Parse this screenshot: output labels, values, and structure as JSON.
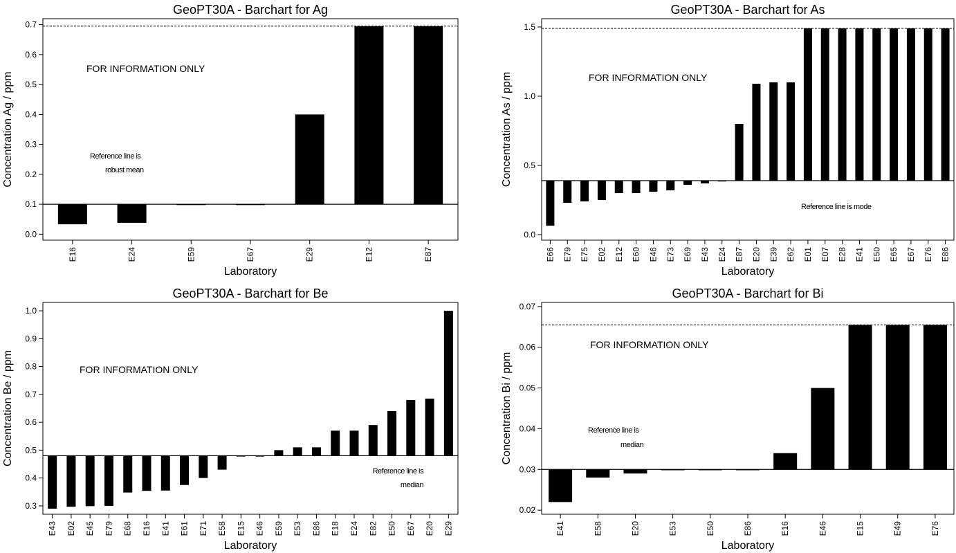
{
  "chart_data": [
    {
      "type": "bar",
      "title": "GeoPT30A - Barchart for Ag",
      "xlabel": "Laboratory",
      "ylabel": "Concentration Ag / ppm",
      "ylim": [
        -0.02,
        0.72
      ],
      "yticks": [
        0.0,
        0.1,
        0.2,
        0.3,
        0.4,
        0.5,
        0.6,
        0.7
      ],
      "ytick_labels": [
        "0.0",
        "0.1",
        "0.2",
        "0.3",
        "0.4",
        "0.5",
        "0.6",
        "0.7"
      ],
      "reference_value": 0.1,
      "cap_value": 0.695,
      "categories": [
        "E16",
        "E24",
        "E59",
        "E67",
        "E29",
        "E12",
        "E87"
      ],
      "values": [
        0.033,
        0.038,
        0.1,
        0.1,
        0.4,
        0.695,
        0.695
      ],
      "annotations": {
        "info": "FOR INFORMATION ONLY",
        "ref_line_1": "Reference line is",
        "ref_line_2": "robust mean"
      }
    },
    {
      "type": "bar",
      "title": "GeoPT30A - Barchart for As",
      "xlabel": "Laboratory",
      "ylabel": "Concentration As / ppm",
      "ylim": [
        -0.04,
        1.56
      ],
      "yticks": [
        0.0,
        0.5,
        1.0,
        1.5
      ],
      "ytick_labels": [
        "0.0",
        "0.5",
        "1.0",
        "1.5"
      ],
      "reference_value": 0.39,
      "cap_value": 1.49,
      "categories": [
        "E66",
        "E79",
        "E75",
        "E02",
        "E12",
        "E60",
        "E46",
        "E73",
        "E69",
        "E43",
        "E24",
        "E87",
        "E20",
        "E39",
        "E62",
        "E01",
        "E07",
        "E28",
        "E41",
        "E50",
        "E65",
        "E67",
        "E76",
        "E86"
      ],
      "values": [
        0.065,
        0.23,
        0.24,
        0.25,
        0.3,
        0.3,
        0.31,
        0.32,
        0.36,
        0.37,
        0.39,
        0.8,
        1.09,
        1.1,
        1.1,
        1.49,
        1.49,
        1.49,
        1.49,
        1.49,
        1.49,
        1.49,
        1.49,
        1.49
      ],
      "annotations": {
        "info": "FOR INFORMATION ONLY",
        "ref_line_1": "Reference line is mode",
        "ref_line_2": ""
      }
    },
    {
      "type": "bar",
      "title": "GeoPT30A - Barchart for Be",
      "xlabel": "Laboratory",
      "ylabel": "Concentration Be / ppm",
      "ylim": [
        0.27,
        1.03
      ],
      "yticks": [
        0.3,
        0.4,
        0.5,
        0.6,
        0.7,
        0.8,
        0.9,
        1.0
      ],
      "ytick_labels": [
        "0.3",
        "0.4",
        "0.5",
        "0.6",
        "0.7",
        "0.8",
        "0.9",
        "1.0"
      ],
      "reference_value": 0.48,
      "cap_value": null,
      "categories": [
        "E43",
        "E02",
        "E45",
        "E79",
        "E68",
        "E16",
        "E41",
        "E61",
        "E71",
        "E58",
        "E15",
        "E46",
        "E59",
        "E53",
        "E86",
        "E18",
        "E24",
        "E82",
        "E50",
        "E67",
        "E20",
        "E29"
      ],
      "values": [
        0.29,
        0.297,
        0.299,
        0.3,
        0.348,
        0.354,
        0.355,
        0.375,
        0.4,
        0.43,
        0.48,
        0.48,
        0.5,
        0.51,
        0.51,
        0.57,
        0.57,
        0.59,
        0.64,
        0.68,
        0.685,
        1.0
      ],
      "annotations": {
        "info": "FOR INFORMATION ONLY",
        "ref_line_1": "Reference line is",
        "ref_line_2": "median"
      }
    },
    {
      "type": "bar",
      "title": "GeoPT30A - Barchart for Bi",
      "xlabel": "Laboratory",
      "ylabel": "Concentration Bi / ppm",
      "ylim": [
        0.019,
        0.071
      ],
      "yticks": [
        0.02,
        0.03,
        0.04,
        0.05,
        0.06,
        0.07
      ],
      "ytick_labels": [
        "0.02",
        "0.03",
        "0.04",
        "0.05",
        "0.06",
        "0.07"
      ],
      "reference_value": 0.03,
      "cap_value": 0.0655,
      "categories": [
        "E41",
        "E58",
        "E20",
        "E53",
        "E50",
        "E86",
        "E16",
        "E46",
        "E15",
        "E49",
        "E76"
      ],
      "values": [
        0.022,
        0.028,
        0.029,
        0.0298,
        0.03,
        0.03,
        0.034,
        0.05,
        0.0655,
        0.0655,
        0.0655
      ],
      "annotations": {
        "info": "FOR INFORMATION ONLY",
        "ref_line_1": "Reference line is",
        "ref_line_2": "median"
      }
    }
  ]
}
